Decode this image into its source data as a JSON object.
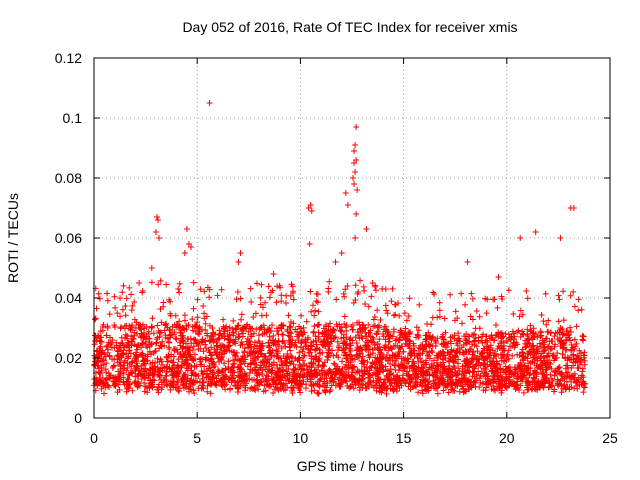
{
  "chart_data": {
    "type": "scatter",
    "title": "Day 052 of 2016, Rate Of TEC Index for receiver xmis",
    "xlabel": "GPS time / hours",
    "ylabel": "ROTI / TECUs",
    "xlim": [
      0,
      25
    ],
    "ylim": [
      0,
      0.12
    ],
    "xticks": [
      0,
      5,
      10,
      15,
      20,
      25
    ],
    "xtick_labels": [
      "0",
      "5",
      "10",
      "15",
      "20",
      "25"
    ],
    "yticks": [
      0,
      0.02,
      0.04,
      0.06,
      0.08,
      0.1,
      0.12
    ],
    "ytick_labels": [
      "0",
      "0.02",
      "0.04",
      "0.06",
      "0.08",
      "0.1",
      "0.12"
    ],
    "grid": true,
    "marker": "+",
    "color": "#ff0000",
    "density_envelope": {
      "note": "approximate upper boundary of dense scatter band (x hours, y TECU)",
      "x": [
        0,
        1,
        2,
        3,
        4,
        5,
        6,
        7,
        8,
        9,
        10,
        11,
        12,
        13,
        14,
        15,
        16,
        17,
        18,
        19,
        20,
        21,
        22,
        23,
        23.8
      ],
      "y": [
        0.03,
        0.031,
        0.031,
        0.032,
        0.032,
        0.031,
        0.03,
        0.031,
        0.031,
        0.031,
        0.031,
        0.032,
        0.032,
        0.032,
        0.031,
        0.029,
        0.028,
        0.028,
        0.028,
        0.028,
        0.029,
        0.03,
        0.03,
        0.03,
        0.028
      ]
    },
    "outliers": {
      "x": [
        5.6,
        12.7,
        12.65,
        12.6,
        12.7,
        12.6,
        12.65,
        12.55,
        12.6,
        12.75,
        12.7,
        12.65,
        12.2,
        12.3,
        13.2,
        10.5,
        10.4,
        10.55,
        10.45,
        23.1,
        23.25,
        3.05,
        3.1,
        3.0,
        3.15,
        21.4,
        20.65,
        22.6,
        4.5,
        4.6,
        4.4,
        4.7,
        2.8,
        7.1,
        7.0,
        18.1,
        19.6,
        8.7,
        12.0,
        11.7,
        13.5
      ],
      "y": [
        0.105,
        0.097,
        0.091,
        0.089,
        0.086,
        0.085,
        0.082,
        0.08,
        0.078,
        0.076,
        0.068,
        0.06,
        0.075,
        0.071,
        0.063,
        0.071,
        0.07,
        0.069,
        0.058,
        0.07,
        0.07,
        0.067,
        0.066,
        0.062,
        0.06,
        0.062,
        0.06,
        0.06,
        0.063,
        0.058,
        0.055,
        0.057,
        0.05,
        0.055,
        0.052,
        0.052,
        0.047,
        0.048,
        0.055,
        0.052,
        0.045
      ]
    }
  }
}
